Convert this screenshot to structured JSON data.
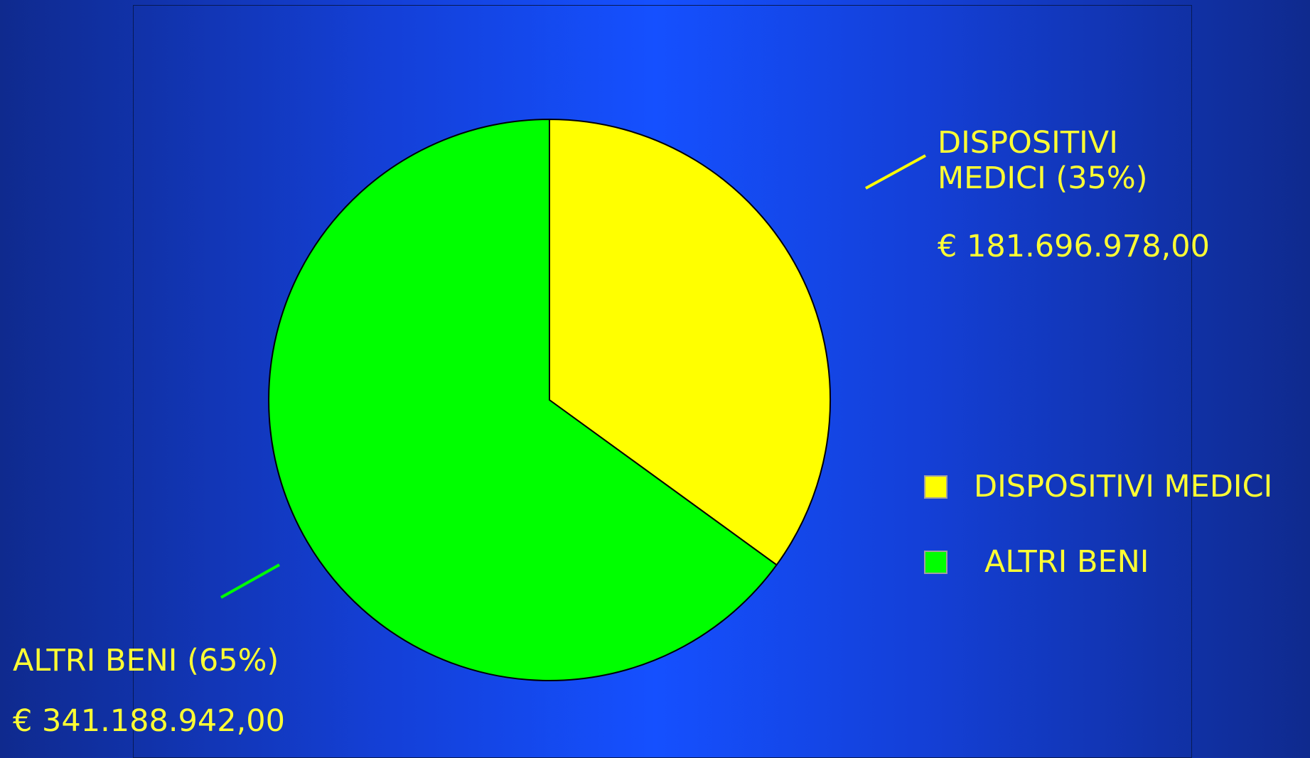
{
  "chart_data": {
    "type": "pie",
    "title": "",
    "slices": [
      {
        "name": "DISPOSITIVI MEDICI",
        "percent": 35,
        "value": "€ 181.696.978,00",
        "label": "DISPOSITIVI MEDICI (35%)",
        "label_line1": "DISPOSITIVI",
        "label_line2": "MEDICI (35%)",
        "color": "#ffff00"
      },
      {
        "name": "ALTRI BENI",
        "percent": 65,
        "value": "€ 341.188.942,00",
        "label": "ALTRI BENI (65%)",
        "color": "#00ff00"
      }
    ],
    "legend": {
      "placement": "right",
      "items": [
        {
          "label": "DISPOSITIVI MEDICI",
          "color": "#ffff00"
        },
        {
          "label": "ALTRI BENI",
          "color": "#00ff00"
        }
      ]
    }
  },
  "colors": {
    "label_text": "#ffff33",
    "background": "#1550ff"
  }
}
